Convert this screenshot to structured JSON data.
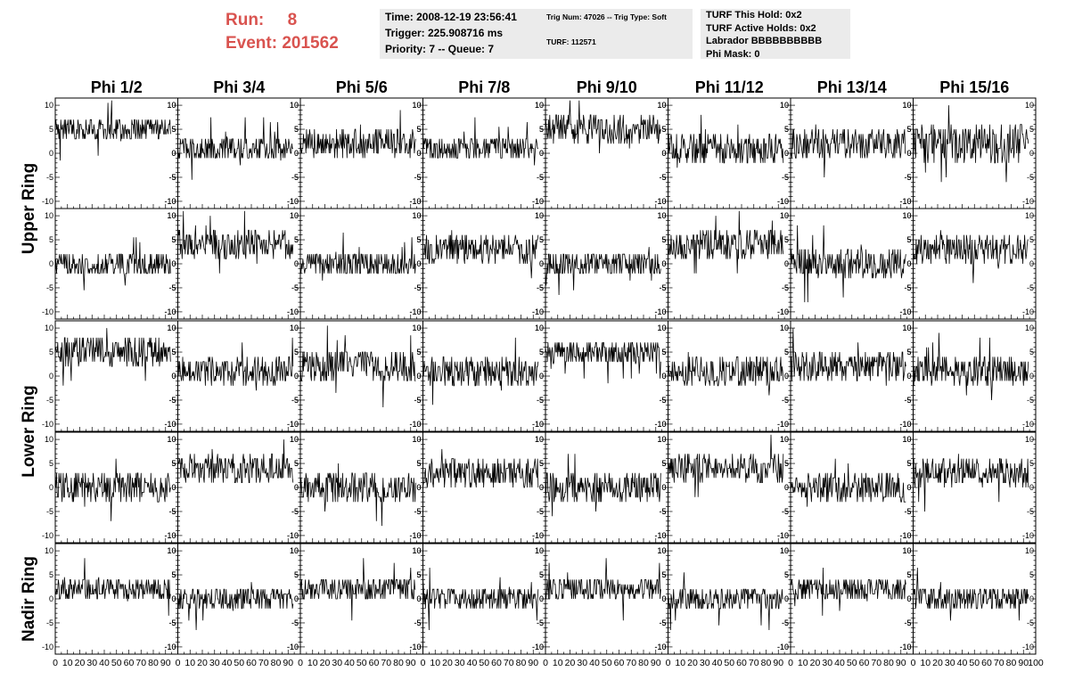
{
  "run_info": {
    "run_label": "Run:",
    "run_value": "8",
    "event_label": "Event:",
    "event_value": "201562"
  },
  "info_box_1": {
    "time": "Time: 2008-12-19 23:56:41",
    "trigger": "Trigger: 225.908716 ms",
    "priority": "Priority: 7 -- Queue: 7"
  },
  "info_box_2": {
    "trig": "Trig Num: 47026 -- Trig Type: Soft",
    "turf": "TURF: 112571"
  },
  "info_box_3": {
    "hold": "TURF This Hold: 0x2",
    "active": "TURF Active Holds: 0x2",
    "labrador": "Labrador BBBBBBBBBB",
    "phimask": "Phi Mask: 0"
  },
  "columns": [
    "Phi 1/2",
    "Phi 3/4",
    "Phi 5/6",
    "Phi 7/8",
    "Phi 9/10",
    "Phi 11/12",
    "Phi 13/14",
    "Phi 15/16"
  ],
  "row_groups": [
    "Upper Ring",
    "Lower Ring",
    "Nadir Ring"
  ],
  "chart_data": {
    "type": "line",
    "title": "",
    "xlabel": "",
    "ylabel": "",
    "xlim": [
      0,
      100
    ],
    "ylim": [
      -11.5,
      11.5
    ],
    "x_ticks": [
      "0",
      "10",
      "20",
      "30",
      "40",
      "50",
      "60",
      "70",
      "80",
      "90",
      "100"
    ],
    "y_ticks": [
      "10",
      "5",
      "0",
      "-5",
      "-10"
    ],
    "grid": false,
    "layout": "5 rows x 8 columns of waveform panels (rows 1-2 Upper Ring, rows 3-4 Lower Ring, row 5 Nadir Ring)",
    "sample_spacing": 0.5,
    "panels_baseline": [
      [
        5,
        1,
        2,
        1,
        5,
        1,
        2,
        2
      ],
      [
        0,
        4,
        0,
        3,
        0,
        4,
        0,
        3
      ],
      [
        5,
        1,
        2,
        1,
        5,
        1,
        2,
        1
      ],
      [
        0,
        4,
        0,
        3,
        0,
        4,
        0,
        3
      ],
      [
        2,
        0,
        2,
        0,
        2,
        0,
        2,
        0
      ]
    ],
    "panels_amplitude": [
      [
        2.5,
        2.5,
        3,
        2.5,
        3,
        3,
        3,
        4
      ],
      [
        2.5,
        3,
        2.5,
        3,
        2.5,
        3,
        3,
        3
      ],
      [
        3,
        3,
        3.5,
        3,
        2.5,
        3,
        3,
        3
      ],
      [
        3,
        3,
        3,
        3,
        3,
        3,
        3,
        3
      ],
      [
        2.5,
        2.5,
        2.5,
        2.5,
        2.5,
        2.5,
        2.5,
        2.5
      ]
    ]
  }
}
